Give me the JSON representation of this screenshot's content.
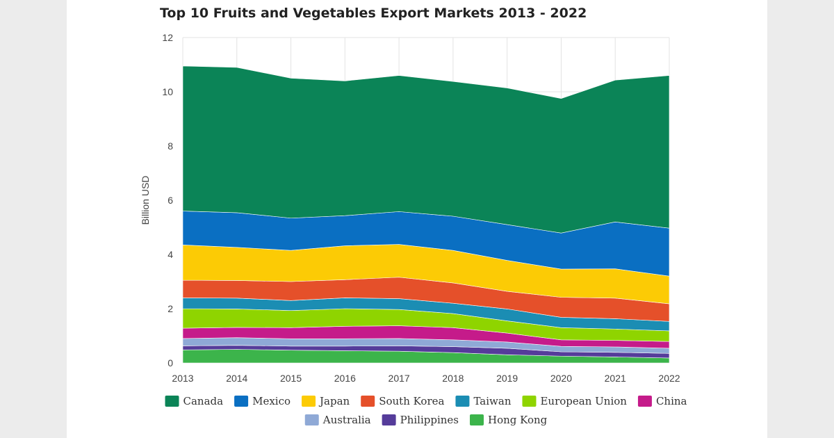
{
  "chart_data": {
    "type": "area",
    "stacked": true,
    "title": "Top 10 Fruits and Vegetables Export Markets 2013 - 2022",
    "ylabel": "Billion USD",
    "xlabel": "",
    "x": [
      "2013",
      "2014",
      "2015",
      "2016",
      "2017",
      "2018",
      "2019",
      "2020",
      "2021",
      "2022"
    ],
    "ylim": [
      0,
      12
    ],
    "yticks": [
      0,
      2,
      4,
      6,
      8,
      10,
      12
    ],
    "grid": true,
    "legend_position": "bottom",
    "series": [
      {
        "name": "Hong Kong",
        "color": "#3cb44b",
        "values": [
          0.48,
          0.5,
          0.47,
          0.45,
          0.43,
          0.38,
          0.3,
          0.25,
          0.22,
          0.18
        ]
      },
      {
        "name": "Philippines",
        "color": "#553c9a",
        "values": [
          0.15,
          0.15,
          0.15,
          0.17,
          0.2,
          0.22,
          0.24,
          0.16,
          0.17,
          0.17
        ]
      },
      {
        "name": "Australia",
        "color": "#8fa9d6",
        "values": [
          0.27,
          0.28,
          0.27,
          0.27,
          0.27,
          0.25,
          0.23,
          0.2,
          0.2,
          0.19
        ]
      },
      {
        "name": "China",
        "color": "#c51b8a",
        "values": [
          0.38,
          0.38,
          0.41,
          0.46,
          0.47,
          0.45,
          0.33,
          0.24,
          0.24,
          0.25
        ]
      },
      {
        "name": "European Union",
        "color": "#8fd400",
        "values": [
          0.72,
          0.68,
          0.63,
          0.65,
          0.6,
          0.52,
          0.45,
          0.45,
          0.42,
          0.39
        ]
      },
      {
        "name": "Taiwan",
        "color": "#1b8db3",
        "values": [
          0.4,
          0.4,
          0.37,
          0.4,
          0.4,
          0.38,
          0.44,
          0.38,
          0.38,
          0.35
        ]
      },
      {
        "name": "South Korea",
        "color": "#e5502a",
        "values": [
          0.65,
          0.65,
          0.7,
          0.67,
          0.79,
          0.75,
          0.65,
          0.74,
          0.76,
          0.65
        ]
      },
      {
        "name": "Japan",
        "color": "#fccb05",
        "values": [
          1.3,
          1.22,
          1.15,
          1.25,
          1.21,
          1.2,
          1.14,
          1.04,
          1.08,
          1.02
        ]
      },
      {
        "name": "Mexico",
        "color": "#0a6fc2",
        "values": [
          1.25,
          1.28,
          1.19,
          1.11,
          1.21,
          1.26,
          1.32,
          1.33,
          1.73,
          1.77
        ]
      },
      {
        "name": "Canada",
        "color": "#0b8457",
        "values": [
          5.35,
          5.36,
          5.16,
          4.97,
          5.02,
          4.97,
          5.04,
          4.96,
          5.23,
          5.63
        ]
      }
    ],
    "legend_order": [
      "Canada",
      "Mexico",
      "Japan",
      "South Korea",
      "Taiwan",
      "European Union",
      "China",
      "Australia",
      "Philippines",
      "Hong Kong"
    ]
  }
}
